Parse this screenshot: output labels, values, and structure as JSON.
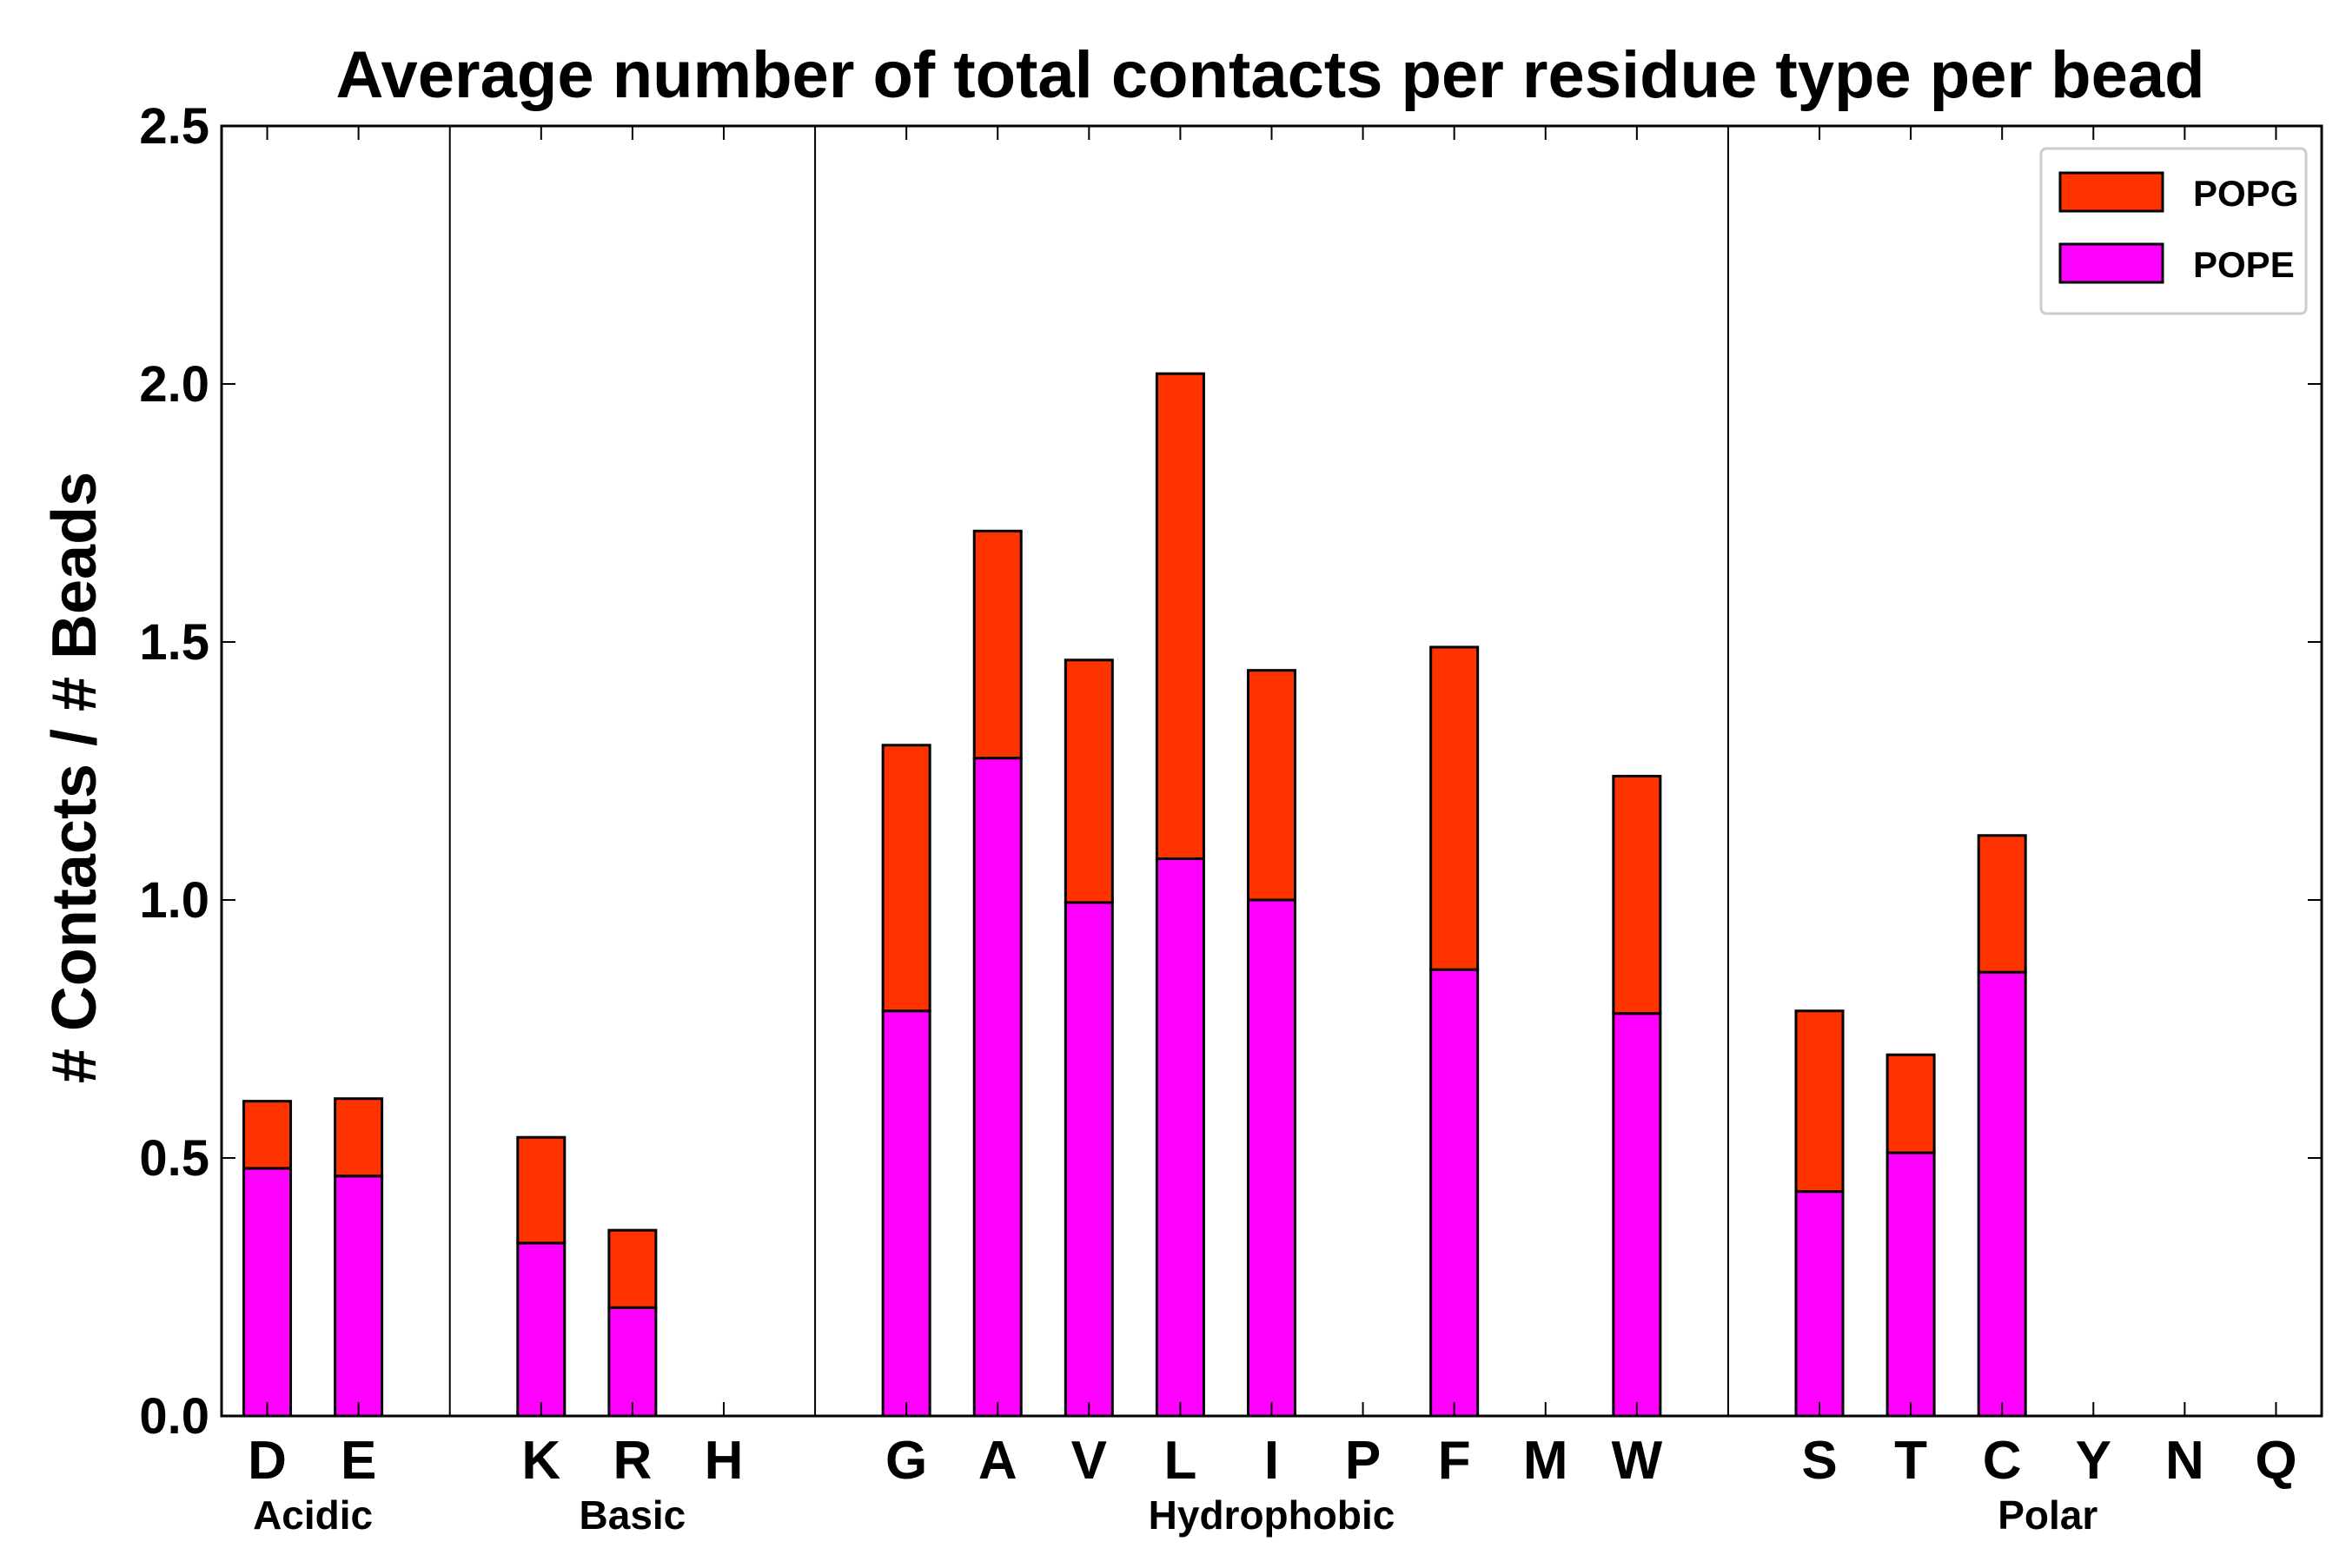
{
  "chart_data": {
    "type": "bar",
    "stacked": true,
    "title": "Average number of total contacts per residue type per bead",
    "xlabel": "",
    "ylabel": "# Contacts / # Beads",
    "ylim": [
      0,
      2.5
    ],
    "yticks": [
      "0.0",
      "0.5",
      "1.0",
      "1.5",
      "2.0",
      "2.5"
    ],
    "grid": false,
    "legend_position": "top-right",
    "categories": [
      "D",
      "E",
      "",
      "K",
      "R",
      "H",
      "",
      "G",
      "A",
      "V",
      "L",
      "I",
      "P",
      "F",
      "M",
      "W",
      "",
      "S",
      "T",
      "C",
      "Y",
      "N",
      "Q"
    ],
    "series": [
      {
        "name": "POPE",
        "color": "#ff00ff",
        "values": [
          0.48,
          0.465,
          0,
          0.335,
          0.21,
          0,
          0,
          0.785,
          1.275,
          0.995,
          1.08,
          1.0,
          0,
          0.865,
          0,
          0.78,
          0,
          0.435,
          0.51,
          0.86,
          0,
          0,
          0
        ]
      },
      {
        "name": "POPG",
        "color": "#ff3300",
        "values": [
          0.13,
          0.15,
          0,
          0.205,
          0.15,
          0,
          0,
          0.515,
          0.44,
          0.47,
          0.94,
          0.445,
          0,
          0.625,
          0,
          0.46,
          0,
          0.35,
          0.19,
          0.265,
          0,
          0,
          0
        ]
      }
    ],
    "groups": [
      {
        "label": "Acidic",
        "start": 0,
        "end": 1
      },
      {
        "label": "Basic",
        "start": 3,
        "end": 5
      },
      {
        "label": "Hydrophobic",
        "start": 7,
        "end": 15
      },
      {
        "label": "Polar",
        "start": 17,
        "end": 22
      }
    ],
    "separators_after": [
      2,
      6,
      16
    ]
  }
}
